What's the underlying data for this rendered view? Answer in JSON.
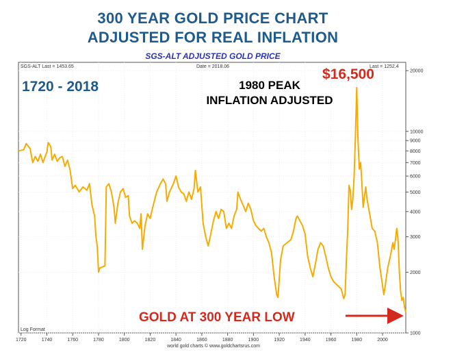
{
  "header": {
    "title_line1": "300 YEAR GOLD PRICE CHART",
    "title_line2": "ADJUSTED FOR REAL INFLATION",
    "subtitle": "SGS-ALT ADJUSTED  GOLD PRICE"
  },
  "chart_meta": {
    "series_last": "SGS-ALT Last = 1453.65",
    "date": "Date = 2018.06",
    "last": "Last = 1252.4",
    "log_format": "Log Format",
    "credit": "world gold charts © www.goldchartsrus.com"
  },
  "annotations": {
    "range": "1720 - 2018",
    "peak_value": "$16,500",
    "peak_line1": "1980 PEAK",
    "peak_line2": "INFLATION ADJUSTED",
    "low_note": "GOLD AT 300 YEAR LOW"
  },
  "colors": {
    "line": "#f5ab00",
    "title": "#1f5a8c",
    "subtitle": "#2a33b8",
    "red": "#d42a1e"
  },
  "chart_data": {
    "type": "line",
    "yscale": "log",
    "xlim": [
      1718,
      2018
    ],
    "ylim": [
      1000,
      22000
    ],
    "x_ticks": [
      1720,
      1740,
      1760,
      1780,
      1800,
      1820,
      1840,
      1860,
      1880,
      1900,
      1920,
      1940,
      1960,
      1980,
      2000
    ],
    "y_ticks": [
      1000,
      2000,
      3000,
      4000,
      5000,
      6000,
      7000,
      8000,
      9000,
      10000,
      20000
    ],
    "series": [
      {
        "values": [
          [
            1718,
            8000
          ],
          [
            1722,
            8100
          ],
          [
            1724,
            8700
          ],
          [
            1727,
            8200
          ],
          [
            1729,
            7000
          ],
          [
            1731,
            7500
          ],
          [
            1733,
            7100
          ],
          [
            1735,
            7700
          ],
          [
            1737,
            7000
          ],
          [
            1738,
            7300
          ],
          [
            1740,
            7900
          ],
          [
            1741,
            8800
          ],
          [
            1743,
            8400
          ],
          [
            1744,
            7200
          ],
          [
            1746,
            7700
          ],
          [
            1748,
            7100
          ],
          [
            1750,
            7400
          ],
          [
            1752,
            7500
          ],
          [
            1754,
            6700
          ],
          [
            1756,
            7200
          ],
          [
            1758,
            6400
          ],
          [
            1760,
            5200
          ],
          [
            1762,
            5400
          ],
          [
            1765,
            5000
          ],
          [
            1768,
            5300
          ],
          [
            1771,
            5100
          ],
          [
            1773,
            5500
          ],
          [
            1775,
            4300
          ],
          [
            1777,
            3800
          ],
          [
            1778,
            3000
          ],
          [
            1779,
            2700
          ],
          [
            1780,
            2000
          ],
          [
            1781,
            2100
          ],
          [
            1785,
            2150
          ],
          [
            1786,
            5300
          ],
          [
            1788,
            5500
          ],
          [
            1790,
            5000
          ],
          [
            1792,
            4200
          ],
          [
            1793,
            3500
          ],
          [
            1795,
            4400
          ],
          [
            1797,
            5000
          ],
          [
            1799,
            5200
          ],
          [
            1801,
            4700
          ],
          [
            1803,
            4800
          ],
          [
            1804,
            3800
          ],
          [
            1806,
            3500
          ],
          [
            1808,
            3600
          ],
          [
            1810,
            3500
          ],
          [
            1812,
            3300
          ],
          [
            1813,
            3900
          ],
          [
            1814,
            2600
          ],
          [
            1816,
            3400
          ],
          [
            1818,
            3900
          ],
          [
            1820,
            3700
          ],
          [
            1822,
            4200
          ],
          [
            1825,
            5000
          ],
          [
            1828,
            5500
          ],
          [
            1830,
            5800
          ],
          [
            1832,
            5500
          ],
          [
            1833,
            4500
          ],
          [
            1835,
            5000
          ],
          [
            1838,
            5500
          ],
          [
            1840,
            6000
          ],
          [
            1842,
            5300
          ],
          [
            1844,
            5000
          ],
          [
            1846,
            4900
          ],
          [
            1848,
            4500
          ],
          [
            1850,
            5000
          ],
          [
            1852,
            4600
          ],
          [
            1854,
            5200
          ],
          [
            1855,
            6400
          ],
          [
            1857,
            5000
          ],
          [
            1859,
            5300
          ],
          [
            1861,
            3500
          ],
          [
            1863,
            3000
          ],
          [
            1865,
            2700
          ],
          [
            1867,
            3100
          ],
          [
            1869,
            3600
          ],
          [
            1871,
            4000
          ],
          [
            1873,
            3700
          ],
          [
            1875,
            4100
          ],
          [
            1877,
            4000
          ],
          [
            1879,
            3300
          ],
          [
            1881,
            3500
          ],
          [
            1883,
            3300
          ],
          [
            1885,
            3800
          ],
          [
            1887,
            4100
          ],
          [
            1888,
            5000
          ],
          [
            1890,
            4600
          ],
          [
            1892,
            4300
          ],
          [
            1894,
            4000
          ],
          [
            1896,
            4400
          ],
          [
            1898,
            4100
          ],
          [
            1900,
            3600
          ],
          [
            1902,
            3400
          ],
          [
            1904,
            3300
          ],
          [
            1906,
            3200
          ],
          [
            1908,
            3300
          ],
          [
            1910,
            3000
          ],
          [
            1912,
            2800
          ],
          [
            1914,
            2500
          ],
          [
            1916,
            1900
          ],
          [
            1918,
            1550
          ],
          [
            1919,
            1500
          ],
          [
            1921,
            2300
          ],
          [
            1923,
            2700
          ],
          [
            1926,
            2800
          ],
          [
            1929,
            2900
          ],
          [
            1931,
            3200
          ],
          [
            1933,
            3700
          ],
          [
            1934,
            3800
          ],
          [
            1936,
            3600
          ],
          [
            1938,
            3400
          ],
          [
            1940,
            3100
          ],
          [
            1942,
            2400
          ],
          [
            1944,
            2100
          ],
          [
            1946,
            1900
          ],
          [
            1948,
            2200
          ],
          [
            1950,
            2600
          ],
          [
            1952,
            2800
          ],
          [
            1954,
            2700
          ],
          [
            1956,
            2400
          ],
          [
            1958,
            2100
          ],
          [
            1960,
            1900
          ],
          [
            1962,
            1800
          ],
          [
            1964,
            1750
          ],
          [
            1966,
            1700
          ],
          [
            1968,
            1650
          ],
          [
            1970,
            1480
          ],
          [
            1971,
            1550
          ],
          [
            1972,
            2300
          ],
          [
            1973,
            3200
          ],
          [
            1974,
            5400
          ],
          [
            1975,
            5100
          ],
          [
            1976,
            4100
          ],
          [
            1977,
            4600
          ],
          [
            1978,
            6000
          ],
          [
            1979,
            9500
          ],
          [
            1980,
            16500
          ],
          [
            1981,
            9000
          ],
          [
            1982,
            6500
          ],
          [
            1983,
            7000
          ],
          [
            1984,
            5500
          ],
          [
            1985,
            4200
          ],
          [
            1987,
            5300
          ],
          [
            1988,
            4600
          ],
          [
            1990,
            3900
          ],
          [
            1992,
            3300
          ],
          [
            1994,
            3200
          ],
          [
            1996,
            2800
          ],
          [
            1998,
            2100
          ],
          [
            1999,
            1900
          ],
          [
            2001,
            1550
          ],
          [
            2002,
            1700
          ],
          [
            2004,
            2100
          ],
          [
            2006,
            2400
          ],
          [
            2008,
            2800
          ],
          [
            2009,
            2600
          ],
          [
            2010,
            2900
          ],
          [
            2011,
            3300
          ],
          [
            2012,
            2900
          ],
          [
            2013,
            2000
          ],
          [
            2014,
            1600
          ],
          [
            2015,
            1450
          ],
          [
            2016,
            1500
          ],
          [
            2017,
            1350
          ],
          [
            2018,
            1260
          ]
        ]
      }
    ]
  }
}
